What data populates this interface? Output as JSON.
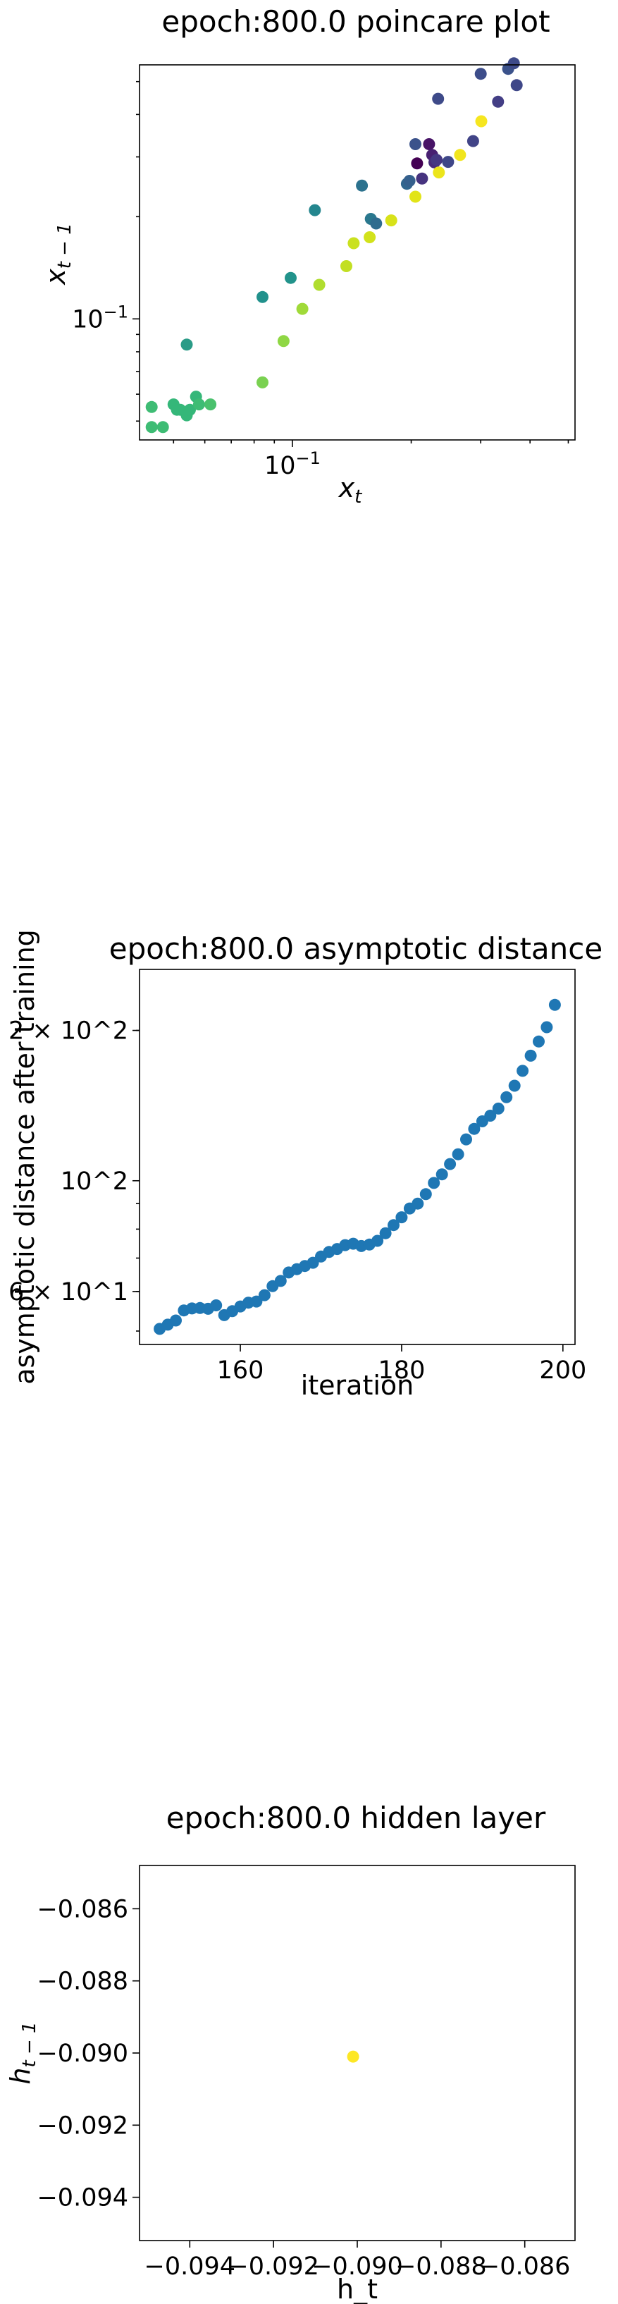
{
  "chart_data": [
    {
      "type": "scatter",
      "title": "epoch:800.0 poincare plot",
      "xlabel": "x_t",
      "ylabel": "x_{t-1}",
      "xscale": "log",
      "yscale": "log",
      "xlim": [
        0.041,
        0.52
      ],
      "ylim": [
        0.044,
        0.56
      ],
      "xtick_labels": [
        {
          "value": 0.1,
          "label": "10^{-1}"
        }
      ],
      "ytick_labels": [
        {
          "value": 0.1,
          "label": "10^{-1}"
        }
      ],
      "colormap": "viridis",
      "points": [
        {
          "x": 0.044,
          "y": 0.055,
          "color": "#3ebc74"
        },
        {
          "x": 0.044,
          "y": 0.048,
          "color": "#3ebc74"
        },
        {
          "x": 0.047,
          "y": 0.048,
          "color": "#3ebc74"
        },
        {
          "x": 0.05,
          "y": 0.056,
          "color": "#35b779"
        },
        {
          "x": 0.051,
          "y": 0.054,
          "color": "#35b779"
        },
        {
          "x": 0.052,
          "y": 0.054,
          "color": "#35b779"
        },
        {
          "x": 0.054,
          "y": 0.052,
          "color": "#35b779"
        },
        {
          "x": 0.055,
          "y": 0.054,
          "color": "#35b779"
        },
        {
          "x": 0.054,
          "y": 0.084,
          "color": "#2a9b87"
        },
        {
          "x": 0.057,
          "y": 0.059,
          "color": "#35b779"
        },
        {
          "x": 0.058,
          "y": 0.056,
          "color": "#3ebc74"
        },
        {
          "x": 0.062,
          "y": 0.056,
          "color": "#4ac16d"
        },
        {
          "x": 0.084,
          "y": 0.065,
          "color": "#7ad151"
        },
        {
          "x": 0.084,
          "y": 0.116,
          "color": "#21918c"
        },
        {
          "x": 0.095,
          "y": 0.086,
          "color": "#8fd744"
        },
        {
          "x": 0.099,
          "y": 0.132,
          "color": "#22938b"
        },
        {
          "x": 0.106,
          "y": 0.107,
          "color": "#a0da39"
        },
        {
          "x": 0.114,
          "y": 0.209,
          "color": "#24868e"
        },
        {
          "x": 0.117,
          "y": 0.126,
          "color": "#b0dd2f"
        },
        {
          "x": 0.137,
          "y": 0.143,
          "color": "#c2df23"
        },
        {
          "x": 0.143,
          "y": 0.167,
          "color": "#cae11f"
        },
        {
          "x": 0.158,
          "y": 0.197,
          "color": "#2a788e"
        },
        {
          "x": 0.157,
          "y": 0.174,
          "color": "#d2e21b"
        },
        {
          "x": 0.15,
          "y": 0.247,
          "color": "#2c728e"
        },
        {
          "x": 0.163,
          "y": 0.191,
          "color": "#2f6c8e"
        },
        {
          "x": 0.178,
          "y": 0.195,
          "color": "#d8e219"
        },
        {
          "x": 0.195,
          "y": 0.25,
          "color": "#31668e"
        },
        {
          "x": 0.198,
          "y": 0.255,
          "color": "#35608d"
        },
        {
          "x": 0.205,
          "y": 0.229,
          "color": "#e2e418"
        },
        {
          "x": 0.205,
          "y": 0.327,
          "color": "#3b528b"
        },
        {
          "x": 0.207,
          "y": 0.287,
          "color": "#440154"
        },
        {
          "x": 0.213,
          "y": 0.259,
          "color": "#46337f"
        },
        {
          "x": 0.222,
          "y": 0.327,
          "color": "#481467"
        },
        {
          "x": 0.226,
          "y": 0.304,
          "color": "#482071"
        },
        {
          "x": 0.229,
          "y": 0.289,
          "color": "#472c7a"
        },
        {
          "x": 0.234,
          "y": 0.445,
          "color": "#3e4a89"
        },
        {
          "x": 0.232,
          "y": 0.294,
          "color": "#453882"
        },
        {
          "x": 0.235,
          "y": 0.27,
          "color": "#ece51b"
        },
        {
          "x": 0.248,
          "y": 0.29,
          "color": "#3f4788"
        },
        {
          "x": 0.266,
          "y": 0.304,
          "color": "#f1e51d"
        },
        {
          "x": 0.287,
          "y": 0.334,
          "color": "#414487"
        },
        {
          "x": 0.301,
          "y": 0.382,
          "color": "#f6e620"
        },
        {
          "x": 0.3,
          "y": 0.527,
          "color": "#3d4d8a"
        },
        {
          "x": 0.332,
          "y": 0.436,
          "color": "#433e85"
        },
        {
          "x": 0.352,
          "y": 0.545,
          "color": "#3b528b"
        },
        {
          "x": 0.364,
          "y": 0.566,
          "color": "#3e4a89"
        },
        {
          "x": 0.37,
          "y": 0.488,
          "color": "#3f4788"
        }
      ]
    },
    {
      "type": "scatter",
      "title": "epoch:800.0 asymptotic distance",
      "xlabel": "iteration",
      "ylabel": "asymptotic distance after training",
      "yscale": "log",
      "xlim": [
        147.5,
        201.5
      ],
      "ylim": [
        47,
        265
      ],
      "xtick_labels": [
        {
          "value": 160,
          "label": "160"
        },
        {
          "value": 180,
          "label": "180"
        },
        {
          "value": 200,
          "label": "200"
        }
      ],
      "ytick_labels": [
        {
          "value": 60,
          "label": "6 × 10^1"
        },
        {
          "value": 100,
          "label": "10^2"
        },
        {
          "value": 200,
          "label": "2 × 10^2"
        }
      ],
      "color": "#1f77b4",
      "x": [
        150,
        151,
        152,
        153,
        154,
        155,
        156,
        157,
        158,
        159,
        160,
        161,
        162,
        163,
        164,
        165,
        166,
        167,
        168,
        169,
        170,
        171,
        172,
        173,
        174,
        175,
        176,
        177,
        178,
        179,
        180,
        181,
        182,
        183,
        184,
        185,
        186,
        187,
        188,
        189,
        190,
        191,
        192,
        193,
        194,
        195,
        196,
        197,
        198,
        199
      ],
      "y": [
        50.5,
        51.5,
        52.5,
        55.0,
        55.5,
        55.6,
        55.4,
        56.3,
        53.8,
        54.8,
        56.0,
        57.0,
        57.3,
        59.0,
        61.5,
        63.0,
        65.5,
        66.5,
        67.5,
        68.5,
        70.5,
        72.0,
        73.0,
        74.3,
        74.8,
        74.0,
        74.5,
        75.8,
        78.5,
        81.5,
        84.5,
        88.0,
        90.0,
        94.0,
        99.0,
        103.0,
        108.0,
        113.0,
        121.0,
        127.0,
        131.5,
        135.0,
        139.5,
        147.0,
        155.0,
        166.0,
        178.0,
        190.0,
        203.0,
        225.0
      ]
    },
    {
      "type": "scatter",
      "title": "epoch:800.0 hidden layer",
      "xlabel": "h_t",
      "ylabel": "h_{t-1}",
      "xlim": [
        -0.0952,
        -0.0848
      ],
      "ylim": [
        -0.0952,
        -0.0848
      ],
      "xtick_labels": [
        {
          "value": -0.094,
          "label": "−0.094"
        },
        {
          "value": -0.092,
          "label": "−0.092"
        },
        {
          "value": -0.09,
          "label": "−0.090"
        },
        {
          "value": -0.088,
          "label": "−0.088"
        },
        {
          "value": -0.086,
          "label": "−0.086"
        }
      ],
      "ytick_labels": [
        {
          "value": -0.086,
          "label": "−0.086"
        },
        {
          "value": -0.088,
          "label": "−0.088"
        },
        {
          "value": -0.09,
          "label": "−0.090"
        },
        {
          "value": -0.092,
          "label": "−0.092"
        },
        {
          "value": -0.094,
          "label": "−0.094"
        }
      ],
      "points": [
        {
          "x": -0.0901,
          "y": -0.0901,
          "color": "#fde725"
        }
      ]
    }
  ]
}
